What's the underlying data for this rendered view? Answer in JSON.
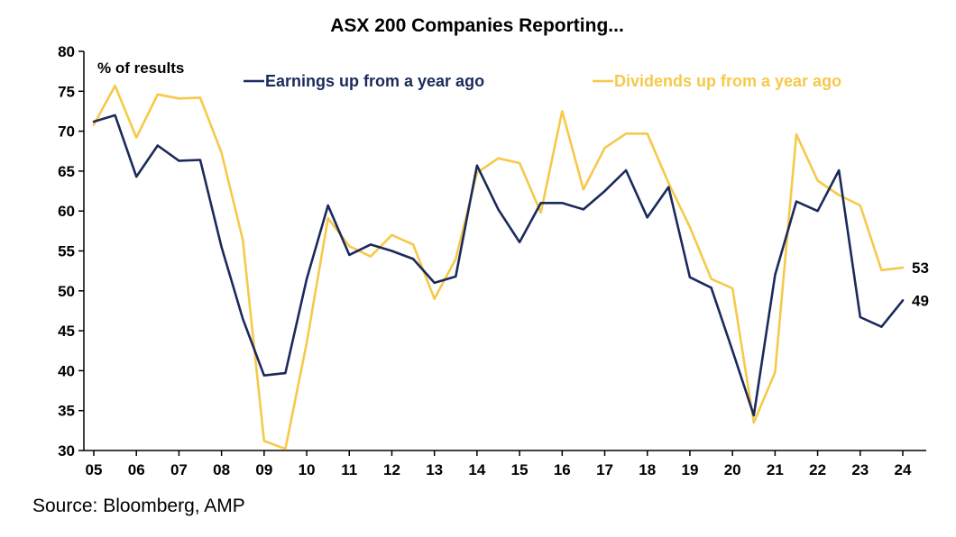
{
  "chart_data": {
    "type": "line",
    "title": "ASX 200 Companies Reporting...",
    "unit_label": "% of results",
    "ylim": [
      30,
      80
    ],
    "yticks": [
      30,
      35,
      40,
      45,
      50,
      55,
      60,
      65,
      70,
      75,
      80
    ],
    "xlim": [
      2005,
      2024.5
    ],
    "xticks": [
      {
        "x": 2005,
        "label": "05"
      },
      {
        "x": 2006,
        "label": "06"
      },
      {
        "x": 2007,
        "label": "07"
      },
      {
        "x": 2008,
        "label": "08"
      },
      {
        "x": 2009,
        "label": "09"
      },
      {
        "x": 2010,
        "label": "10"
      },
      {
        "x": 2011,
        "label": "11"
      },
      {
        "x": 2012,
        "label": "12"
      },
      {
        "x": 2013,
        "label": "13"
      },
      {
        "x": 2014,
        "label": "14"
      },
      {
        "x": 2015,
        "label": "15"
      },
      {
        "x": 2016,
        "label": "16"
      },
      {
        "x": 2017,
        "label": "17"
      },
      {
        "x": 2018,
        "label": "18"
      },
      {
        "x": 2019,
        "label": "19"
      },
      {
        "x": 2020,
        "label": "20"
      },
      {
        "x": 2021,
        "label": "21"
      },
      {
        "x": 2022,
        "label": "22"
      },
      {
        "x": 2023,
        "label": "23"
      },
      {
        "x": 2024,
        "label": "24"
      }
    ],
    "grid": false,
    "legend_position": "top",
    "series": [
      {
        "name": "Earnings up from a year ago",
        "color": "#1b2a5c",
        "end_label": "49",
        "points": [
          [
            2005.0,
            71.2
          ],
          [
            2005.5,
            72.0
          ],
          [
            2006.0,
            64.3
          ],
          [
            2006.5,
            68.2
          ],
          [
            2007.0,
            66.3
          ],
          [
            2007.5,
            66.4
          ],
          [
            2008.0,
            55.5
          ],
          [
            2008.5,
            46.5
          ],
          [
            2009.0,
            39.4
          ],
          [
            2009.5,
            39.7
          ],
          [
            2010.0,
            51.5
          ],
          [
            2010.5,
            60.7
          ],
          [
            2011.0,
            54.5
          ],
          [
            2011.5,
            55.8
          ],
          [
            2012.0,
            55.0
          ],
          [
            2012.5,
            54.0
          ],
          [
            2013.0,
            51.0
          ],
          [
            2013.5,
            51.8
          ],
          [
            2014.0,
            65.7
          ],
          [
            2014.5,
            60.2
          ],
          [
            2015.0,
            56.1
          ],
          [
            2015.5,
            61.0
          ],
          [
            2016.0,
            61.0
          ],
          [
            2016.5,
            60.2
          ],
          [
            2017.0,
            62.5
          ],
          [
            2017.5,
            65.1
          ],
          [
            2018.0,
            59.2
          ],
          [
            2018.5,
            63.0
          ],
          [
            2019.0,
            51.7
          ],
          [
            2019.5,
            50.4
          ],
          [
            2020.0,
            42.5
          ],
          [
            2020.5,
            34.4
          ],
          [
            2021.0,
            52.0
          ],
          [
            2021.5,
            61.2
          ],
          [
            2022.0,
            60.0
          ],
          [
            2022.5,
            65.1
          ],
          [
            2023.0,
            46.7
          ],
          [
            2023.5,
            45.5
          ],
          [
            2024.0,
            48.8
          ]
        ]
      },
      {
        "name": "Dividends up from a year ago",
        "color": "#f6c94a",
        "end_label": "53",
        "points": [
          [
            2005.0,
            70.8
          ],
          [
            2005.5,
            75.7
          ],
          [
            2006.0,
            69.2
          ],
          [
            2006.5,
            74.6
          ],
          [
            2007.0,
            74.1
          ],
          [
            2007.5,
            74.2
          ],
          [
            2008.0,
            67.3
          ],
          [
            2008.5,
            56.4
          ],
          [
            2009.0,
            31.2
          ],
          [
            2009.5,
            30.2
          ],
          [
            2010.0,
            43.5
          ],
          [
            2010.5,
            59.1
          ],
          [
            2011.0,
            55.6
          ],
          [
            2011.5,
            54.3
          ],
          [
            2012.0,
            57.0
          ],
          [
            2012.5,
            55.8
          ],
          [
            2013.0,
            49.0
          ],
          [
            2013.5,
            54.0
          ],
          [
            2014.0,
            64.8
          ],
          [
            2014.5,
            66.6
          ],
          [
            2015.0,
            66.0
          ],
          [
            2015.5,
            59.8
          ],
          [
            2016.0,
            72.5
          ],
          [
            2016.5,
            62.7
          ],
          [
            2017.0,
            67.9
          ],
          [
            2017.5,
            69.7
          ],
          [
            2018.0,
            69.7
          ],
          [
            2018.5,
            63.5
          ],
          [
            2019.0,
            58.0
          ],
          [
            2019.5,
            51.5
          ],
          [
            2020.0,
            50.3
          ],
          [
            2020.5,
            33.5
          ],
          [
            2021.0,
            39.8
          ],
          [
            2021.5,
            69.6
          ],
          [
            2022.0,
            63.8
          ],
          [
            2022.5,
            62.0
          ],
          [
            2023.0,
            60.7
          ],
          [
            2023.5,
            52.6
          ],
          [
            2024.0,
            52.9
          ]
        ]
      }
    ]
  },
  "source": "Source: Bloomberg, AMP"
}
